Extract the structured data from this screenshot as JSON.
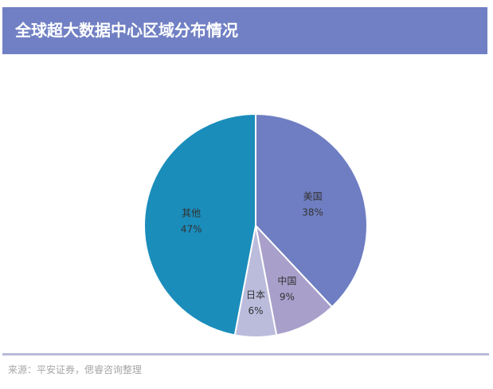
{
  "header": {
    "title": "全球超大数据中心区域分布情况"
  },
  "footer": {
    "source": "来源：平安证券，偲睿咨询整理"
  },
  "colors": {
    "header_bg": "#7180C4",
    "footer_line": "#B8BBD8",
    "美国": "#6F7EC2",
    "中国": "#A89FCB",
    "日本": "#BBBCDC",
    "其他": "#1A8DBB"
  },
  "chart_data": {
    "type": "pie",
    "title": "全球超大数据中心区域分布情况",
    "categories": [
      "美国",
      "中国",
      "日本",
      "其他"
    ],
    "values": [
      38,
      9,
      6,
      47
    ],
    "unit": "%",
    "labels": [
      "美国 38%",
      "中国 9%",
      "日本 6%",
      "其他 47%"
    ],
    "start_angle": "12 o'clock, clockwise",
    "legend": "none (data labels inside slices)",
    "source": "来源：平安证券，偲睿咨询整理"
  }
}
